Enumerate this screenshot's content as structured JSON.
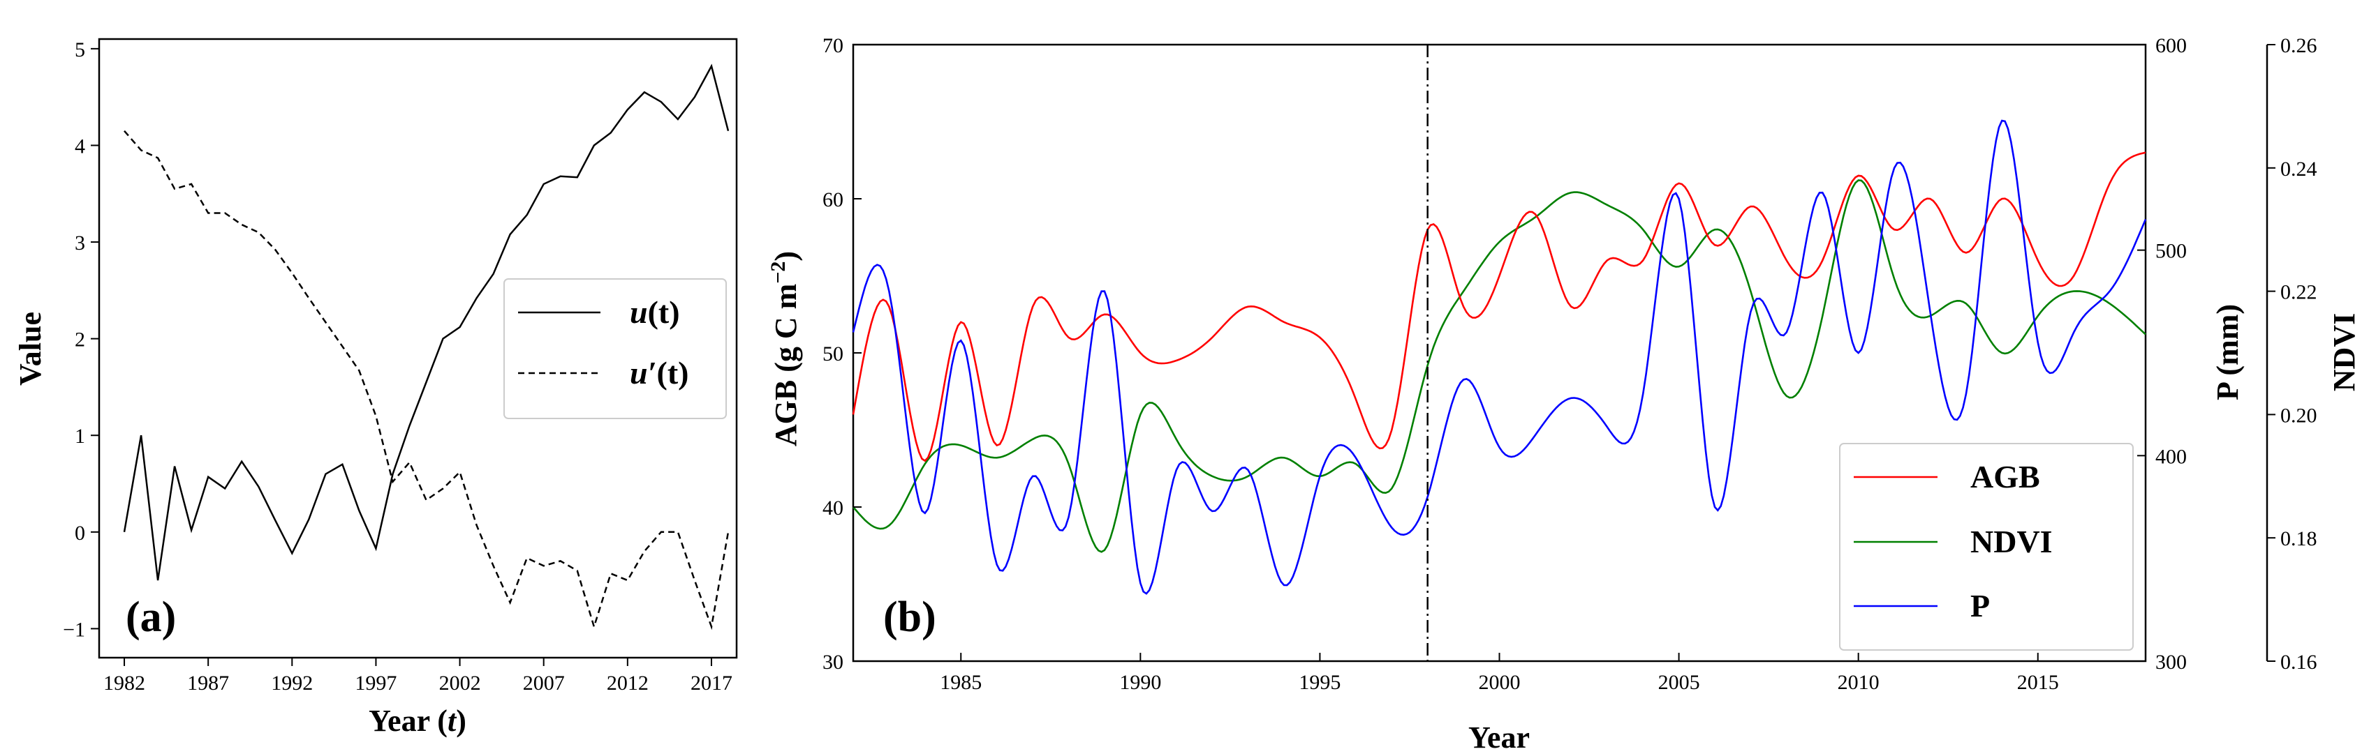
{
  "chart_data": [
    {
      "type": "line",
      "panel": "(a)",
      "xlabel": "Year (t)",
      "xlabel_main": "Year (",
      "xlabel_var": "t",
      "xlabel_close": ")",
      "ylabel": "Value",
      "xlim": [
        1980.5,
        2018.5
      ],
      "ylim": [
        -1.3,
        5.1
      ],
      "xticks": [
        1982,
        1987,
        1992,
        1997,
        2002,
        2007,
        2012,
        2017
      ],
      "yticks": [
        -1,
        0,
        1,
        2,
        3,
        4,
        5
      ],
      "legend_position": "center-right",
      "x": [
        1982,
        1983,
        1984,
        1985,
        1986,
        1987,
        1988,
        1989,
        1990,
        1991,
        1992,
        1993,
        1994,
        1995,
        1996,
        1997,
        1998,
        1999,
        2000,
        2001,
        2002,
        2003,
        2004,
        2005,
        2006,
        2007,
        2008,
        2009,
        2010,
        2011,
        2012,
        2013,
        2014,
        2015,
        2016,
        2017,
        2018
      ],
      "series": [
        {
          "name": "u(t)",
          "legend_main": "u",
          "legend_args": "(t)",
          "style": "solid",
          "values": [
            0.0,
            1.0,
            -0.5,
            0.68,
            0.02,
            0.57,
            0.45,
            0.73,
            0.47,
            0.12,
            -0.22,
            0.13,
            0.6,
            0.7,
            0.22,
            -0.17,
            0.6,
            1.1,
            1.55,
            2.0,
            2.12,
            2.42,
            2.67,
            3.08,
            3.28,
            3.6,
            3.68,
            3.67,
            4.0,
            4.13,
            4.37,
            4.55,
            4.45,
            4.27,
            4.5,
            4.82,
            4.15
          ]
        },
        {
          "name": "u′(t)",
          "legend_main": "u′",
          "legend_args": "(t)",
          "style": "dashed",
          "values": [
            4.15,
            3.95,
            3.87,
            3.55,
            3.6,
            3.3,
            3.3,
            3.18,
            3.1,
            2.92,
            2.68,
            2.42,
            2.17,
            1.92,
            1.67,
            1.2,
            0.52,
            0.72,
            0.33,
            0.45,
            0.62,
            0.07,
            -0.35,
            -0.73,
            -0.27,
            -0.35,
            -0.3,
            -0.4,
            -0.98,
            -0.43,
            -0.5,
            -0.2,
            0.0,
            0.0,
            -0.5,
            -0.98,
            0.0
          ]
        }
      ]
    },
    {
      "type": "line",
      "panel": "(b)",
      "xlabel": "Year",
      "ylabel": "AGB (g C m⁻²)",
      "ylabel_right_1": "P (mm)",
      "ylabel_right_2": "NDVI",
      "xlim": [
        1982,
        2018
      ],
      "ylim_agb": [
        30,
        70
      ],
      "ylim_p": [
        300,
        600
      ],
      "ylim_ndvi": [
        0.16,
        0.26
      ],
      "xticks": [
        1985,
        1990,
        1995,
        2000,
        2005,
        2010,
        2015
      ],
      "yticks_agb": [
        30,
        40,
        50,
        60,
        70
      ],
      "yticks_p": [
        300,
        400,
        500,
        600
      ],
      "yticks_ndvi": [
        "0.16",
        "0.18",
        "0.20",
        "0.22",
        "0.24",
        "0.26"
      ],
      "change_point_year": 1998,
      "legend_position": "bottom-right",
      "series": [
        {
          "name": "AGB",
          "color": "#ff0000",
          "axis": "agb",
          "x": [
            1982,
            1983,
            1984,
            1985,
            1986,
            1987,
            1988,
            1989,
            1990,
            1991,
            1992,
            1993,
            1994,
            1995,
            1996,
            1997,
            1998,
            1999,
            2000,
            2001,
            2002,
            2003,
            2004,
            2005,
            2006,
            2007,
            2008,
            2009,
            2010,
            2011,
            2012,
            2013,
            2014,
            2015,
            2016,
            2017,
            2018
          ],
          "values": [
            46,
            53,
            43,
            52,
            44,
            53,
            51,
            52.5,
            50,
            49.5,
            51,
            53,
            52,
            51,
            47,
            45,
            58,
            53,
            55,
            59,
            53,
            56,
            56,
            61,
            57,
            59.5,
            56,
            56,
            61.5,
            58,
            60,
            56.5,
            60,
            56,
            55,
            61,
            63
          ]
        },
        {
          "name": "NDVI",
          "color": "#008000",
          "axis": "ndvi",
          "x": [
            1982,
            1983,
            1984,
            1985,
            1986,
            1987,
            1988,
            1989,
            1990,
            1991,
            1992,
            1993,
            1994,
            1995,
            1996,
            1997,
            1998,
            1999,
            2000,
            2001,
            2002,
            2003,
            2004,
            2005,
            2006,
            2007,
            2008,
            2009,
            2010,
            2011,
            2012,
            2013,
            2014,
            2015,
            2016,
            2017,
            2018
          ],
          "values": [
            0.185,
            0.182,
            0.192,
            0.195,
            0.193,
            0.196,
            0.192,
            0.178,
            0.2,
            0.196,
            0.19,
            0.19,
            0.193,
            0.19,
            0.192,
            0.188,
            0.208,
            0.22,
            0.228,
            0.232,
            0.236,
            0.234,
            0.23,
            0.224,
            0.23,
            0.22,
            0.203,
            0.216,
            0.238,
            0.222,
            0.216,
            0.218,
            0.21,
            0.216,
            0.22,
            0.218,
            0.213
          ]
        },
        {
          "name": "P",
          "color": "#0000ff",
          "axis": "p",
          "x": [
            1982,
            1983,
            1984,
            1985,
            1986,
            1987,
            1988,
            1989,
            1990,
            1991,
            1992,
            1993,
            1994,
            1995,
            1996,
            1997,
            1998,
            1999,
            2000,
            2001,
            2002,
            2003,
            2004,
            2005,
            2006,
            2007,
            2008,
            2009,
            2010,
            2011,
            2012,
            2013,
            2014,
            2015,
            2016,
            2017,
            2018
          ],
          "values": [
            460,
            480,
            372,
            456,
            347,
            390,
            370,
            480,
            338,
            393,
            373,
            393,
            337,
            390,
            399,
            365,
            380,
            437,
            404,
            410,
            428,
            414,
            430,
            525,
            375,
            470,
            460,
            528,
            450,
            540,
            470,
            430,
            563,
            455,
            460,
            480,
            515
          ]
        }
      ]
    }
  ]
}
